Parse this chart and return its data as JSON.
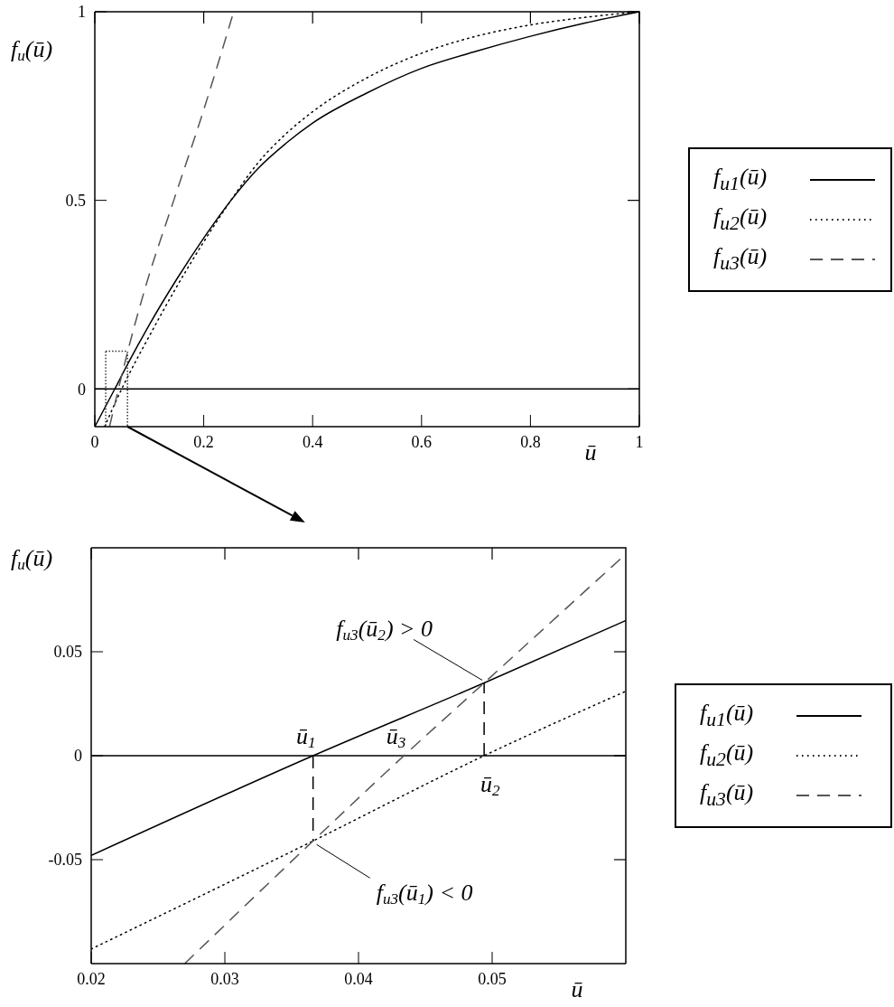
{
  "chart_data": [
    {
      "type": "line",
      "xlabel": "ū",
      "ylabel": "f$_{u}$(ū)",
      "xlim": [
        0,
        1
      ],
      "xticks": [
        0,
        0.2,
        0.4,
        0.6,
        0.8,
        1
      ],
      "ylim": [
        -0.1,
        1
      ],
      "yticks": [
        0,
        0.5,
        1
      ],
      "legend": "right",
      "ref_lines": [
        {
          "axis": "y",
          "value": 0,
          "color": "#000000"
        }
      ],
      "series": [
        {
          "name": "f$_{u1}$(ū)",
          "color": "#000000",
          "line_style": "solid",
          "x": [
            0,
            0.0367,
            0.06,
            0.1,
            0.15,
            0.2,
            0.25,
            0.3,
            0.35,
            0.4,
            0.5,
            0.6,
            0.7,
            0.8,
            0.9,
            1
          ],
          "values": [
            -0.1,
            0,
            0.065,
            0.17,
            0.29,
            0.4,
            0.5,
            0.585,
            0.65,
            0.705,
            0.785,
            0.85,
            0.895,
            0.935,
            0.97,
            1
          ]
        },
        {
          "name": "f$_{u2}$(ū)",
          "color": "#000000",
          "line_style": "dotted",
          "x": [
            0.018,
            0.0494,
            0.06,
            0.1,
            0.15,
            0.2,
            0.25,
            0.3,
            0.35,
            0.4,
            0.5,
            0.6,
            0.7,
            0.8,
            0.9,
            1
          ],
          "values": [
            -0.1,
            0,
            0.031,
            0.14,
            0.27,
            0.39,
            0.5,
            0.6,
            0.675,
            0.735,
            0.825,
            0.89,
            0.935,
            0.965,
            0.985,
            1
          ]
        },
        {
          "name": "f$_{u3}$(ū)",
          "color": "#555555",
          "line_style": "dashed",
          "x": [
            0.027,
            0.0434,
            0.06,
            0.093,
            0.145,
            0.2,
            0.255
          ],
          "values": [
            -0.1,
            0,
            0.097,
            0.27,
            0.5,
            0.74,
            1
          ]
        }
      ]
    },
    {
      "type": "line",
      "xlabel": "ū",
      "ylabel": "f$_{u}$(ū)",
      "xlim": [
        0.02,
        0.06
      ],
      "xticks": [
        0.02,
        0.03,
        0.04,
        0.05
      ],
      "ylim": [
        -0.1,
        0.1
      ],
      "yticks": [
        -0.05,
        0,
        0.05
      ],
      "legend": "right",
      "ref_lines": [
        {
          "axis": "y",
          "value": 0,
          "color": "#000000"
        }
      ],
      "annotations": [
        {
          "text": "ū$_{1}$",
          "x": 0.0366,
          "y": 0
        },
        {
          "text": "ū$_{3}$",
          "x": 0.0434,
          "y": 0
        },
        {
          "text": "ū$_{2}$",
          "x": 0.0494,
          "y": 0
        },
        {
          "text": "f$_{u3}$(ū$_{2}$) > 0",
          "x": 0.0494,
          "y": 0.035
        },
        {
          "text": "f$_{u3}$(ū$_{1}$) < 0",
          "x": 0.0366,
          "y": -0.041
        }
      ],
      "series": [
        {
          "name": "f$_{u1}$(ū)",
          "color": "#000000",
          "line_style": "solid",
          "x": [
            0.02,
            0.0366,
            0.0494,
            0.06
          ],
          "values": [
            -0.048,
            0,
            0.035,
            0.065
          ]
        },
        {
          "name": "f$_{u2}$(ū)",
          "color": "#000000",
          "line_style": "dotted",
          "x": [
            0.02,
            0.0366,
            0.0494,
            0.06
          ],
          "values": [
            -0.093,
            -0.041,
            0,
            0.031
          ]
        },
        {
          "name": "f$_{u3}$(ū)",
          "color": "#555555",
          "line_style": "dashed",
          "x": [
            0.027,
            0.0366,
            0.0434,
            0.0494,
            0.06
          ],
          "values": [
            -0.1,
            -0.041,
            0,
            0.035,
            0.097
          ]
        },
        {
          "color": "#000000",
          "line_style": "dashed",
          "x": [
            0.0366,
            0.0366
          ],
          "values": [
            0,
            -0.041
          ]
        },
        {
          "color": "#000000",
          "line_style": "dashed",
          "x": [
            0.0494,
            0.0494
          ],
          "values": [
            0,
            0.035
          ]
        }
      ]
    }
  ]
}
